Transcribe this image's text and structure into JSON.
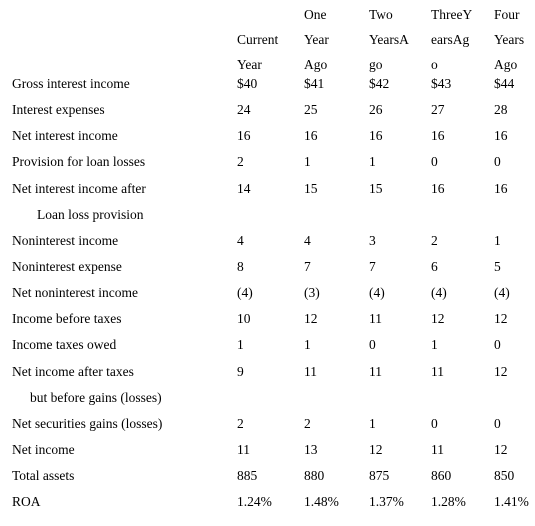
{
  "table": {
    "headers": [
      "\nCurrent\nYear",
      "One\nYear\nAgo",
      "Two\nYearsA\ngo",
      "ThreeY\nearsAg\no",
      "Four\nYears\nAgo"
    ],
    "rows": [
      {
        "label": "Gross interest income",
        "values": [
          "$40",
          "$41",
          "$42",
          "$43",
          "$44"
        ]
      },
      {
        "label": "Interest expenses",
        "values": [
          "24",
          "25",
          "26",
          "27",
          "28"
        ]
      },
      {
        "label": "Net interest income",
        "values": [
          "16",
          "16",
          "16",
          "16",
          "16"
        ]
      },
      {
        "label": "Provision for loan losses",
        "values": [
          "2",
          "1",
          "1",
          "0",
          "0"
        ]
      },
      {
        "label": "Net interest income after",
        "values": [
          "14",
          "15",
          "15",
          "16",
          "16"
        ]
      },
      {
        "label": "Loan loss provision",
        "values": [
          "",
          "",
          "",
          "",
          ""
        ]
      },
      {
        "label": "Noninterest income",
        "values": [
          "4",
          "4",
          "3",
          "2",
          "1"
        ]
      },
      {
        "label": "Noninterest expense",
        "values": [
          "8",
          "7",
          "7",
          "6",
          "5"
        ]
      },
      {
        "label": "Net noninterest income",
        "values": [
          "(4)",
          "(3)",
          "(4)",
          "(4)",
          "(4)"
        ]
      },
      {
        "label": "Income before taxes",
        "values": [
          "10",
          "12",
          "11",
          "12",
          "12"
        ]
      },
      {
        "label": "Income taxes owed",
        "values": [
          "1",
          "1",
          "0",
          "1",
          "0"
        ]
      },
      {
        "label": "Net income after taxes",
        "values": [
          "9",
          "11",
          "11",
          "11",
          "12"
        ]
      },
      {
        "label": "but before gains (losses)",
        "values": [
          "",
          "",
          "",
          "",
          ""
        ]
      },
      {
        "label": "Net securities gains (losses)",
        "values": [
          "2",
          "2",
          "1",
          "0",
          "0"
        ]
      },
      {
        "label": "Net income",
        "values": [
          "11",
          "13",
          "12",
          "11",
          "12"
        ]
      },
      {
        "label": "Total assets",
        "values": [
          "885",
          "880",
          "875",
          "860",
          "850"
        ]
      },
      {
        "label": "ROA",
        "values": [
          "1.24%",
          "1.48%",
          "1.37%",
          "1.28%",
          "1.41%"
        ]
      }
    ]
  }
}
